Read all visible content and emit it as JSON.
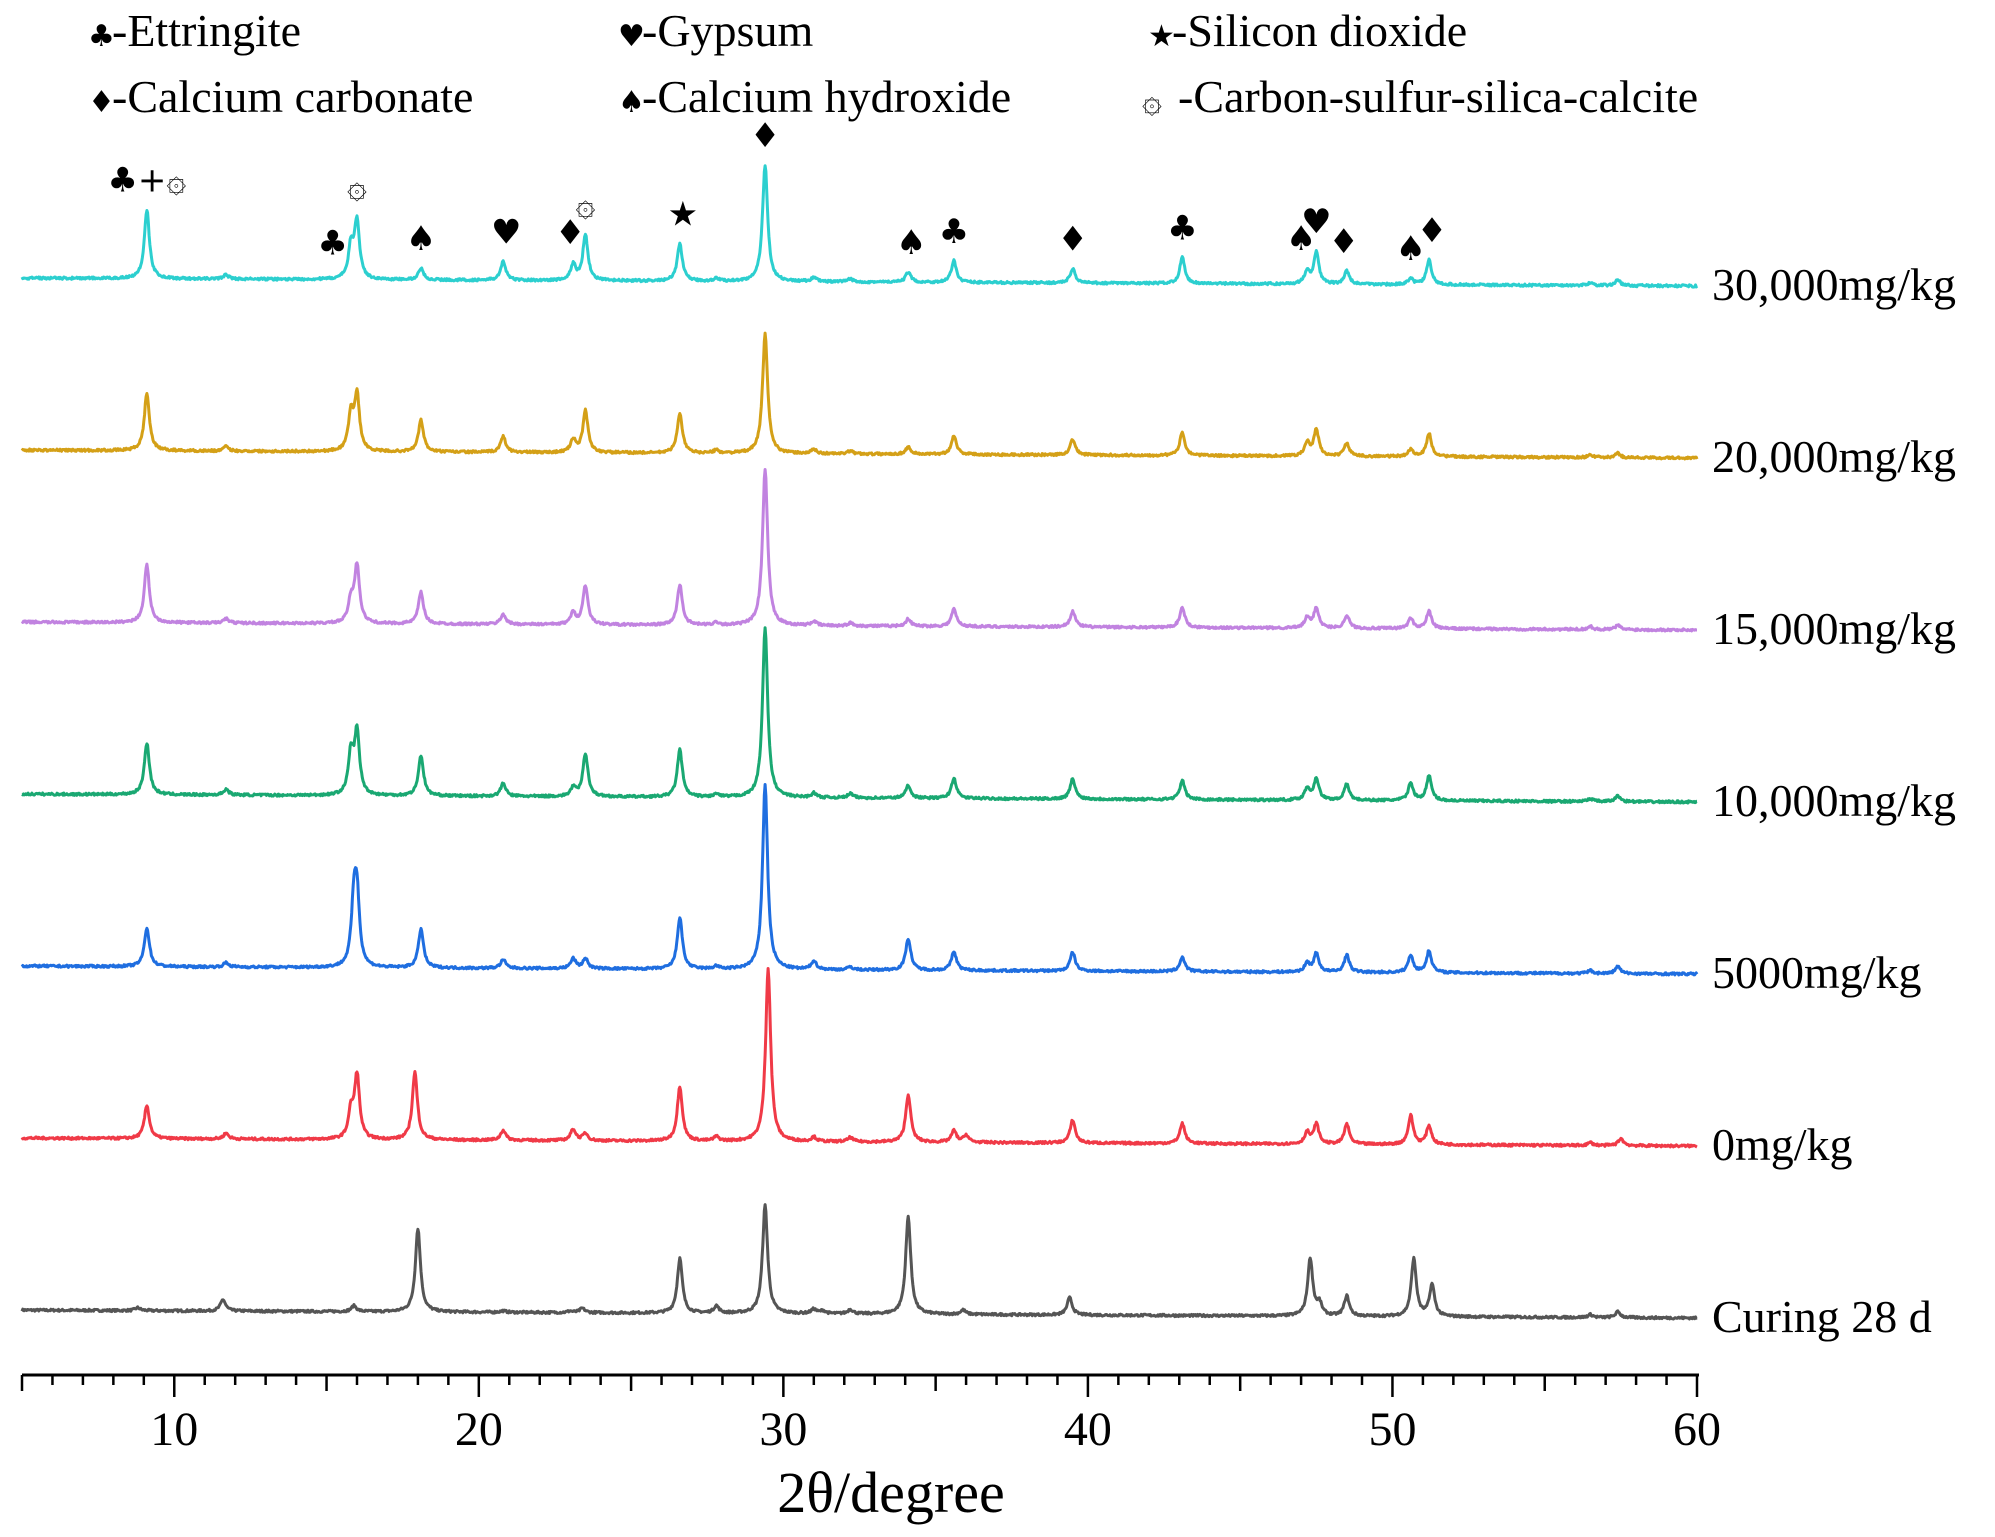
{
  "chart_data": {
    "type": "line",
    "title": "",
    "xlabel": "2θ/degree",
    "ylabel": "",
    "xlim": [
      5,
      60
    ],
    "x_ticks": [
      10,
      20,
      30,
      40,
      50,
      60
    ],
    "x_tick_labels": [
      "10",
      "20",
      "30",
      "40",
      "50",
      "60"
    ],
    "grid": false,
    "legend_position": "top",
    "legend": [
      {
        "symbol": "♣",
        "label": "-Ettringite"
      },
      {
        "symbol": "♥",
        "label": "-Gypsum"
      },
      {
        "symbol": "★",
        "label": "-Silicon dioxide"
      },
      {
        "symbol": "♦",
        "label": "-Calcium carbonate"
      },
      {
        "symbol": "♠",
        "label": "-Calcium hydroxide"
      },
      {
        "symbol": "۞",
        "label": "-Carbon-sulfur-silica-calcite"
      }
    ],
    "series": [
      {
        "name": "Curing 28 d",
        "color": "#555555",
        "offset": 0,
        "peaks": [
          [
            8.8,
            2
          ],
          [
            11.6,
            8
          ],
          [
            15.9,
            4
          ],
          [
            18.0,
            58
          ],
          [
            20.8,
            1
          ],
          [
            23.0,
            1
          ],
          [
            23.4,
            3
          ],
          [
            26.6,
            38
          ],
          [
            27.8,
            5
          ],
          [
            29.4,
            75
          ],
          [
            31.0,
            3
          ],
          [
            31.3,
            2
          ],
          [
            32.2,
            3
          ],
          [
            34.1,
            68
          ],
          [
            35.9,
            3
          ],
          [
            39.4,
            12
          ],
          [
            47.3,
            40
          ],
          [
            47.6,
            8
          ],
          [
            48.5,
            14
          ],
          [
            50.7,
            40
          ],
          [
            51.3,
            22
          ],
          [
            56.5,
            2
          ],
          [
            57.4,
            4
          ]
        ]
      },
      {
        "name": "0mg/kg",
        "color": "#f03a47",
        "offset": 100,
        "peaks": [
          [
            9.1,
            23
          ],
          [
            11.7,
            4
          ],
          [
            15.8,
            18
          ],
          [
            16.0,
            44
          ],
          [
            17.9,
            47
          ],
          [
            20.8,
            7
          ],
          [
            23.1,
            8
          ],
          [
            23.5,
            5
          ],
          [
            26.6,
            38
          ],
          [
            27.8,
            3
          ],
          [
            29.5,
            120
          ],
          [
            31.0,
            3
          ],
          [
            32.2,
            3
          ],
          [
            34.1,
            33
          ],
          [
            35.6,
            8
          ],
          [
            36.0,
            5
          ],
          [
            39.5,
            16
          ],
          [
            43.1,
            14
          ],
          [
            47.2,
            8
          ],
          [
            47.5,
            14
          ],
          [
            48.5,
            14
          ],
          [
            50.6,
            20
          ],
          [
            51.2,
            13
          ],
          [
            56.5,
            2
          ],
          [
            57.5,
            5
          ]
        ]
      },
      {
        "name": "5000mg/kg",
        "color": "#1f6ee0",
        "offset": 200,
        "peaks": [
          [
            9.1,
            27
          ],
          [
            11.7,
            3
          ],
          [
            15.9,
            42
          ],
          [
            16.0,
            45
          ],
          [
            18.1,
            27
          ],
          [
            20.8,
            6
          ],
          [
            23.1,
            7
          ],
          [
            23.5,
            7
          ],
          [
            26.6,
            36
          ],
          [
            27.8,
            2
          ],
          [
            29.4,
            128
          ],
          [
            31.0,
            6
          ],
          [
            32.2,
            2
          ],
          [
            34.1,
            22
          ],
          [
            35.6,
            13
          ],
          [
            39.5,
            13
          ],
          [
            43.1,
            10
          ],
          [
            47.2,
            6
          ],
          [
            47.5,
            13
          ],
          [
            48.5,
            12
          ],
          [
            50.6,
            12
          ],
          [
            51.2,
            15
          ],
          [
            56.5,
            2
          ],
          [
            57.4,
            5
          ]
        ]
      },
      {
        "name": "10,000mg/kg",
        "color": "#1aa872",
        "offset": 300,
        "peaks": [
          [
            9.1,
            36
          ],
          [
            11.7,
            4
          ],
          [
            15.8,
            28
          ],
          [
            16.0,
            43
          ],
          [
            18.1,
            28
          ],
          [
            20.8,
            9
          ],
          [
            23.1,
            6
          ],
          [
            23.5,
            30
          ],
          [
            26.6,
            33
          ],
          [
            27.8,
            2
          ],
          [
            29.4,
            118
          ],
          [
            31.0,
            3
          ],
          [
            32.2,
            3
          ],
          [
            34.1,
            9
          ],
          [
            35.6,
            14
          ],
          [
            39.5,
            14
          ],
          [
            43.1,
            13
          ],
          [
            47.2,
            8
          ],
          [
            47.5,
            15
          ],
          [
            48.5,
            11
          ],
          [
            50.6,
            12
          ],
          [
            51.2,
            17
          ],
          [
            56.5,
            2
          ],
          [
            57.4,
            4
          ]
        ]
      },
      {
        "name": "15,000mg/kg",
        "color": "#c183e0",
        "offset": 400,
        "peaks": [
          [
            9.1,
            40
          ],
          [
            11.7,
            3
          ],
          [
            15.8,
            15
          ],
          [
            16.0,
            40
          ],
          [
            18.1,
            22
          ],
          [
            20.8,
            7
          ],
          [
            23.1,
            8
          ],
          [
            23.5,
            27
          ],
          [
            26.6,
            28
          ],
          [
            27.8,
            2
          ],
          [
            29.4,
            108
          ],
          [
            31.0,
            3
          ],
          [
            32.2,
            2
          ],
          [
            34.1,
            5
          ],
          [
            35.6,
            12
          ],
          [
            39.5,
            11
          ],
          [
            43.1,
            14
          ],
          [
            47.2,
            7
          ],
          [
            47.5,
            14
          ],
          [
            48.5,
            9
          ],
          [
            50.6,
            7
          ],
          [
            51.2,
            12
          ],
          [
            56.5,
            2
          ],
          [
            57.4,
            3
          ]
        ]
      },
      {
        "name": "20,000mg/kg",
        "color": "#d4a017",
        "offset": 500,
        "peaks": [
          [
            9.1,
            40
          ],
          [
            11.7,
            3
          ],
          [
            15.8,
            25
          ],
          [
            16.0,
            38
          ],
          [
            18.1,
            22
          ],
          [
            20.8,
            11
          ],
          [
            23.1,
            9
          ],
          [
            23.5,
            29
          ],
          [
            26.6,
            28
          ],
          [
            27.8,
            2
          ],
          [
            29.4,
            83
          ],
          [
            31.0,
            3
          ],
          [
            32.2,
            2
          ],
          [
            34.1,
            5
          ],
          [
            35.6,
            13
          ],
          [
            39.5,
            11
          ],
          [
            43.1,
            16
          ],
          [
            47.2,
            9
          ],
          [
            47.5,
            18
          ],
          [
            48.5,
            9
          ],
          [
            50.6,
            5
          ],
          [
            51.2,
            16
          ],
          [
            56.5,
            2
          ],
          [
            57.4,
            3
          ]
        ]
      },
      {
        "name": "30,000mg/kg",
        "color": "#2ccfcf",
        "offset": 600,
        "peaks": [
          [
            9.1,
            48
          ],
          [
            11.7,
            3
          ],
          [
            15.8,
            22
          ],
          [
            16.0,
            40
          ],
          [
            18.1,
            8
          ],
          [
            20.8,
            13
          ],
          [
            23.1,
            11
          ],
          [
            23.5,
            32
          ],
          [
            26.6,
            26
          ],
          [
            27.8,
            2
          ],
          [
            29.4,
            81
          ],
          [
            31.0,
            3
          ],
          [
            32.2,
            2
          ],
          [
            34.1,
            7
          ],
          [
            35.6,
            15
          ],
          [
            39.5,
            10
          ],
          [
            43.1,
            18
          ],
          [
            47.2,
            9
          ],
          [
            47.5,
            22
          ],
          [
            48.5,
            9
          ],
          [
            50.6,
            4
          ],
          [
            51.2,
            17
          ],
          [
            56.5,
            2
          ],
          [
            57.4,
            4
          ]
        ]
      }
    ],
    "peak_annotations": [
      {
        "symbol": "♣+۞",
        "x": 9.1
      },
      {
        "symbol": "♣",
        "x": 15.2
      },
      {
        "symbol": "۞",
        "x": 16.0
      },
      {
        "symbol": "♠",
        "x": 18.1
      },
      {
        "symbol": "♥",
        "x": 20.9
      },
      {
        "symbol": "♦",
        "x": 23.0
      },
      {
        "symbol": "۞",
        "x": 23.5
      },
      {
        "symbol": "★",
        "x": 26.7
      },
      {
        "symbol": "♦",
        "x": 29.4
      },
      {
        "symbol": "♠",
        "x": 34.2
      },
      {
        "symbol": "♣",
        "x": 35.6
      },
      {
        "symbol": "♦",
        "x": 39.5
      },
      {
        "symbol": "♣",
        "x": 43.1
      },
      {
        "symbol": "♠",
        "x": 47.0
      },
      {
        "symbol": "♥",
        "x": 47.5
      },
      {
        "symbol": "♦",
        "x": 48.4
      },
      {
        "symbol": "♠",
        "x": 50.6
      },
      {
        "symbol": "♦",
        "x": 51.3
      }
    ]
  }
}
